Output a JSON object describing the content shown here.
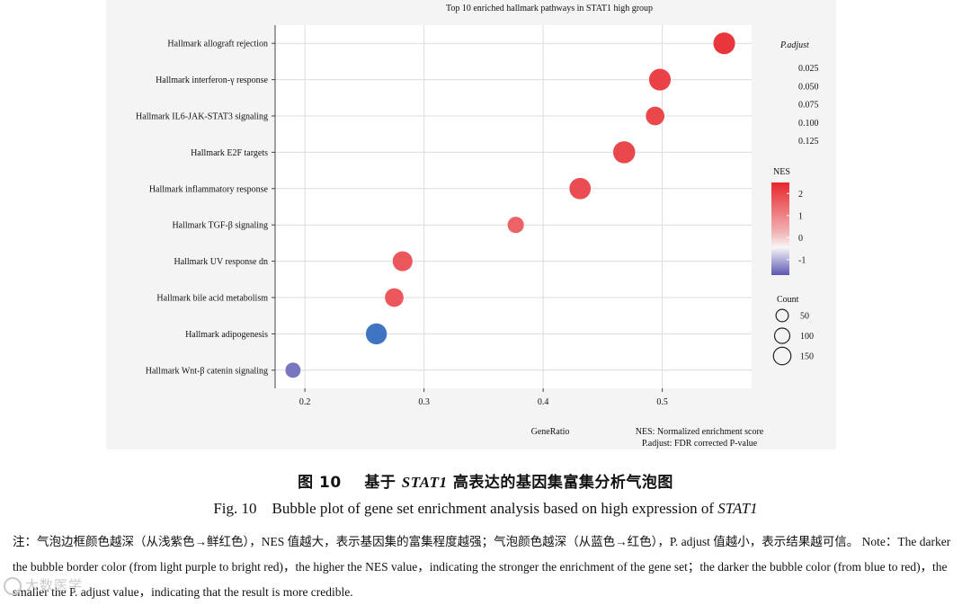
{
  "chart_data": {
    "type": "scatter",
    "title": "Top 10 enriched hallmark pathways in STAT1 high group",
    "xlabel": "GeneRatio",
    "ylabel": "",
    "xlim": [
      0.175,
      0.575
    ],
    "xticks": [
      0.2,
      0.3,
      0.4,
      0.5
    ],
    "xtick_labels": [
      "0.2",
      "0.3",
      "0.4",
      "0.5"
    ],
    "categories": [
      "Hallmark allograft rejection",
      "Hallmark interferon-γ response",
      "Hallmark IL6-JAK-STAT3 signaling",
      "Hallmark E2F targets",
      "Hallmark inflammatory response",
      "Hallmark TGF-β signaling",
      "Hallmark UV response dn",
      "Hallmark bile acid metabolism",
      "Hallmark adipogenesis",
      "Hallmark Wnt-β catenin signaling"
    ],
    "points": [
      {
        "pathway": "Hallmark allograft rejection",
        "gene_ratio": 0.552,
        "count": 120,
        "nes": 2.2,
        "p_adjust": 0.005
      },
      {
        "pathway": "Hallmark interferon-γ response",
        "gene_ratio": 0.498,
        "count": 120,
        "nes": 2.0,
        "p_adjust": 0.005
      },
      {
        "pathway": "Hallmark IL6-JAK-STAT3 signaling",
        "gene_ratio": 0.494,
        "count": 80,
        "nes": 1.9,
        "p_adjust": 0.01
      },
      {
        "pathway": "Hallmark E2F targets",
        "gene_ratio": 0.468,
        "count": 125,
        "nes": 1.9,
        "p_adjust": 0.01
      },
      {
        "pathway": "Hallmark inflammatory response",
        "gene_ratio": 0.431,
        "count": 115,
        "nes": 1.8,
        "p_adjust": 0.01
      },
      {
        "pathway": "Hallmark TGF-β signaling",
        "gene_ratio": 0.377,
        "count": 55,
        "nes": 1.4,
        "p_adjust": 0.05
      },
      {
        "pathway": "Hallmark UV response dn",
        "gene_ratio": 0.282,
        "count": 95,
        "nes": 1.6,
        "p_adjust": 0.03
      },
      {
        "pathway": "Hallmark bile acid metabolism",
        "gene_ratio": 0.275,
        "count": 80,
        "nes": 1.6,
        "p_adjust": 0.03
      },
      {
        "pathway": "Hallmark adipogenesis",
        "gene_ratio": 0.26,
        "count": 110,
        "nes": -1.3,
        "p_adjust": 0.12
      },
      {
        "pathway": "Hallmark Wnt-β catenin signaling",
        "gene_ratio": 0.19,
        "count": 45,
        "nes": -1.2,
        "p_adjust": 0.1
      }
    ],
    "legend_padjust": {
      "title": "P.adjust",
      "labels": [
        "0.025",
        "0.050",
        "0.075",
        "0.100",
        "0.125"
      ]
    },
    "legend_nes": {
      "title": "NES",
      "labels": [
        "2",
        "1",
        "0",
        "-1"
      ],
      "values": [
        2,
        1,
        0,
        -1
      ],
      "range": [
        -1.7,
        2.5
      ]
    },
    "legend_count": {
      "title": "Count",
      "labels": [
        "50",
        "100",
        "150"
      ],
      "values": [
        50,
        100,
        150
      ]
    },
    "footnote_1": "NES: Normalized enrichment score",
    "footnote_2": "P.adjust: FDR corrected P-value",
    "colors": {
      "nes_high": "#e8262d",
      "nes_mid": "#f7f7f7",
      "nes_low": "#5b57b3",
      "blue_fill": "#3f74c2",
      "grid": "#dcdcdc"
    }
  },
  "caption": {
    "cn_label": "图 10",
    "cn_text_prefix": "基于",
    "cn_gene": "STAT1",
    "cn_text_suffix": "高表达的基因集富集分析气泡图",
    "en_label": "Fig. 10",
    "en_text": "Bubble plot of gene set enrichment analysis based on high expression of",
    "en_gene": "STAT1"
  },
  "note": {
    "cn": "注：气泡边框颜色越深（从浅紫色→鲜红色），NES 值越大，表示基因集的富集程度越强；气泡颜色越深（从蓝色→红色），P. adjust 值越小，表示结果越可信。",
    "en": "Note：The darker the bubble border color (from light purple to bright red)，the higher the NES value，indicating the stronger the enrichment of the gene set；the darker the bubble color (from blue to red)，the smaller the P. adjust value，indicating that the result is more credible."
  },
  "watermark": "大数医学"
}
